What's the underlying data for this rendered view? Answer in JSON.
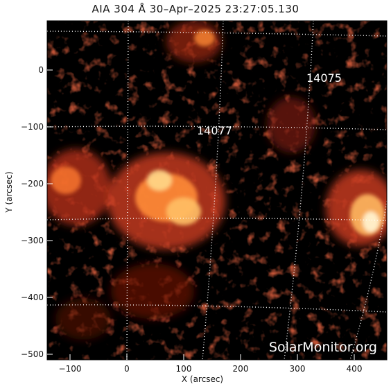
{
  "title": "AIA 304 Å 30–Apr–2025 23:27:05.130",
  "axes": {
    "xlabel": "X (arcsec)",
    "ylabel": "Y (arcsec)",
    "xticks": [
      "−100",
      "0",
      "100",
      "200",
      "300",
      "400"
    ],
    "yticks": [
      "0",
      "−100",
      "−200",
      "−300",
      "−400",
      "−500"
    ]
  },
  "regions": [
    {
      "id": "14075",
      "label": "14075"
    },
    {
      "id": "14077",
      "label": "14077"
    }
  ],
  "watermark": "SolarMonitor.org",
  "colors": {
    "background": "#000000",
    "flare_core": "#fff4d6",
    "hot": "#ff9a3c",
    "mid": "#c0311a",
    "dark": "#3a0503",
    "grid": "#ffffff"
  }
}
